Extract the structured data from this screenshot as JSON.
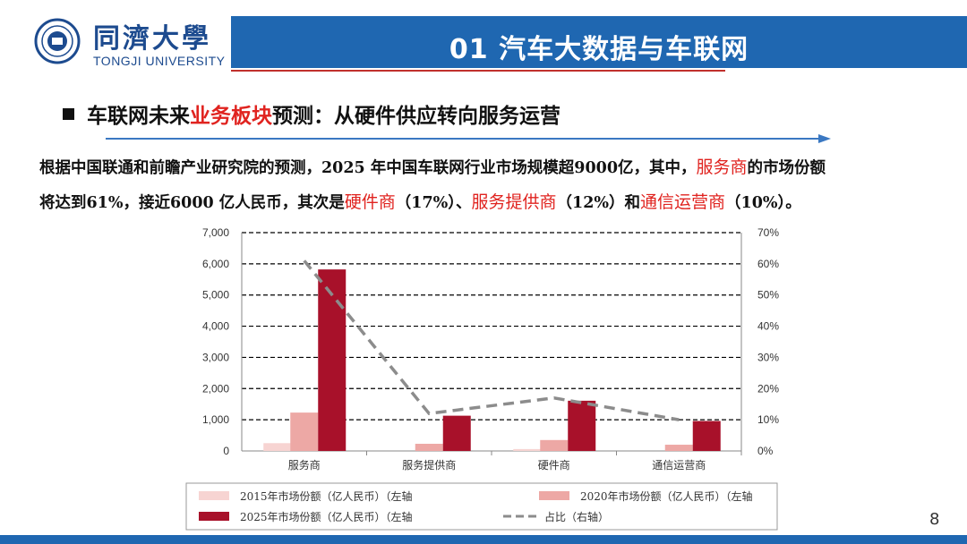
{
  "header": {
    "university_cn": "同濟大學",
    "university_en": "TONGJI UNIVERSITY",
    "title": "01 汽车大数据与车联网",
    "colors": {
      "title_bar": "#1f67b1",
      "accent_red": "#e0231f"
    }
  },
  "subtitle": {
    "before": "车联网未来",
    "highlight": "业务板块",
    "after": "预测：从硬件供应转向服务运营"
  },
  "paragraph": {
    "line1_a": "根据中国联通和前瞻产业研究院的预测，2025  年中国车联网行业市场规模超9000亿，其中，",
    "line1_hl": "服务商",
    "line1_b": "的市场份额",
    "line2_a": "将达到61%，接近6000 亿人民币，其次是",
    "hl_hardware": "硬件商",
    "pct_hardware": "（17%）、",
    "hl_service_provider": "服务提供商",
    "pct_service_provider": "（12%）和",
    "hl_telecom": "通信运营商",
    "pct_telecom": "（10%）。"
  },
  "chart_data": {
    "type": "bar",
    "categories": [
      "服务商",
      "服务提供商",
      "硬件商",
      "通信运营商"
    ],
    "series": [
      {
        "name": "2015年市场份额（亿人民币）（左轴",
        "kind": "bar",
        "color": "#f7d4d2",
        "values": [
          250,
          0,
          60,
          0
        ]
      },
      {
        "name": "2020年市场份额（亿人民币）（左轴",
        "kind": "bar",
        "color": "#eda8a5",
        "values": [
          1230,
          230,
          350,
          200
        ]
      },
      {
        "name": "2025年市场份额（亿人民币）（左轴",
        "kind": "bar",
        "color": "#a8112a",
        "values": [
          5820,
          1130,
          1610,
          960
        ]
      },
      {
        "name": "占比（右轴）",
        "kind": "line",
        "axis": "right",
        "color": "#8c8c8c",
        "values": [
          61,
          12,
          17,
          10
        ]
      }
    ],
    "y_left": {
      "min": 0,
      "max": 7000,
      "ticks": [
        "0",
        "1,000",
        "2,000",
        "3,000",
        "4,000",
        "5,000",
        "6,000",
        "7,000"
      ]
    },
    "y_right": {
      "min": 0,
      "max": 70,
      "ticks": [
        "0%",
        "10%",
        "20%",
        "30%",
        "40%",
        "50%",
        "60%",
        "70%"
      ]
    },
    "grid": true,
    "legend_position": "bottom"
  },
  "page_number": "8"
}
